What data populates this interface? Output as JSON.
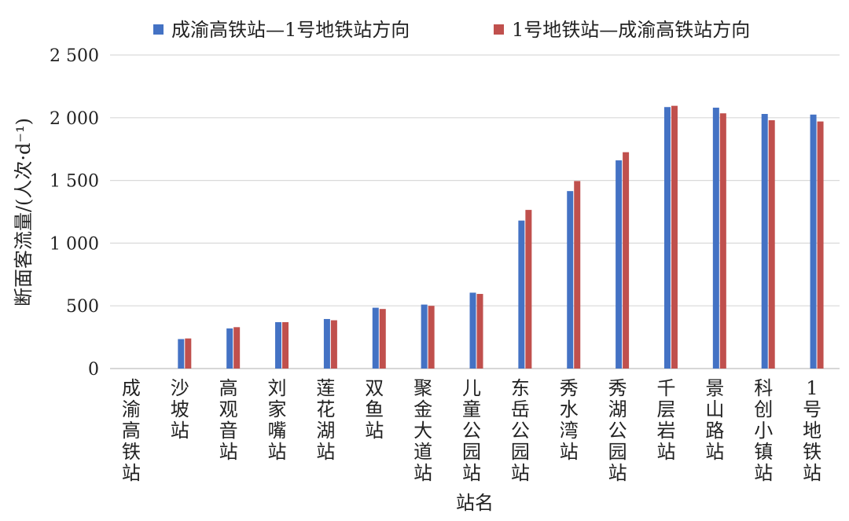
{
  "chart_data": {
    "type": "bar",
    "title": "",
    "xlabel": "站名",
    "ylabel": "断面客流量/(人次·d⁻¹)",
    "ylim": [
      0,
      2500
    ],
    "yticks": [
      0,
      500,
      1000,
      1500,
      2000,
      2500
    ],
    "ytick_labels": [
      "0",
      "500",
      "1 000",
      "1 500",
      "2 000",
      "2 500"
    ],
    "grid": "horizontal",
    "legend_position": "top",
    "categories": [
      "成渝高铁站",
      "沙坡站",
      "高观音站",
      "刘家嘴站",
      "莲花湖站",
      "双鱼站",
      "聚金大道站",
      "儿童公园站",
      "东岳公园站",
      "秀水湾站",
      "秀湖公园站",
      "千层岩站",
      "景山路站",
      "科创小镇站",
      "1号地铁站"
    ],
    "series": [
      {
        "name": "成渝高铁站—1号地铁站方向",
        "color": "#4472C4",
        "values": [
          null,
          235,
          320,
          370,
          395,
          485,
          510,
          605,
          1180,
          1415,
          1660,
          2085,
          2080,
          2030,
          2025
        ]
      },
      {
        "name": "1号地铁站—成渝高铁站方向",
        "color": "#C0504D",
        "values": [
          null,
          240,
          330,
          370,
          385,
          475,
          500,
          595,
          1265,
          1495,
          1725,
          2095,
          2035,
          1980,
          1970
        ]
      }
    ]
  }
}
